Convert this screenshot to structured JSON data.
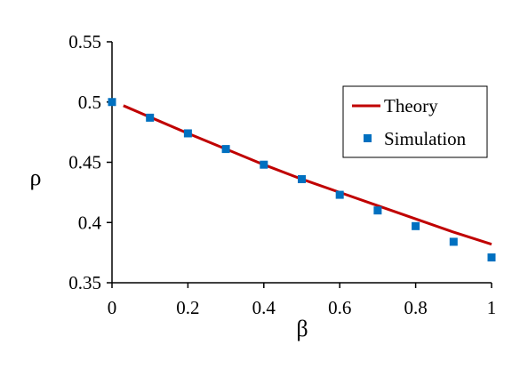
{
  "chart_data": {
    "type": "scatter",
    "xlabel": "β",
    "ylabel": "ρ",
    "xlim": [
      0,
      1
    ],
    "ylim": [
      0.35,
      0.55
    ],
    "x_ticks": [
      "0",
      "0.2",
      "0.4",
      "0.6",
      "0.8",
      "1"
    ],
    "y_ticks": [
      "0.35",
      "0.4",
      "0.45",
      "0.5",
      "0.55"
    ],
    "grid": false,
    "legend": "right",
    "series": [
      {
        "name": "Theory",
        "kind": "line",
        "color": "#c00000",
        "x": [
          0.03,
          0.1,
          0.2,
          0.3,
          0.4,
          0.5,
          0.6,
          0.7,
          0.8,
          0.9,
          1.0
        ],
        "y": [
          0.497,
          0.4875,
          0.474,
          0.461,
          0.448,
          0.436,
          0.425,
          0.414,
          0.403,
          0.392,
          0.382
        ]
      },
      {
        "name": "Simulation",
        "kind": "scatter",
        "color": "#0070c0",
        "x": [
          0,
          0.1,
          0.2,
          0.3,
          0.4,
          0.5,
          0.6,
          0.7,
          0.8,
          0.9,
          1.0
        ],
        "y": [
          0.5,
          0.487,
          0.474,
          0.461,
          0.448,
          0.436,
          0.423,
          0.41,
          0.397,
          0.384,
          0.371
        ]
      }
    ]
  }
}
